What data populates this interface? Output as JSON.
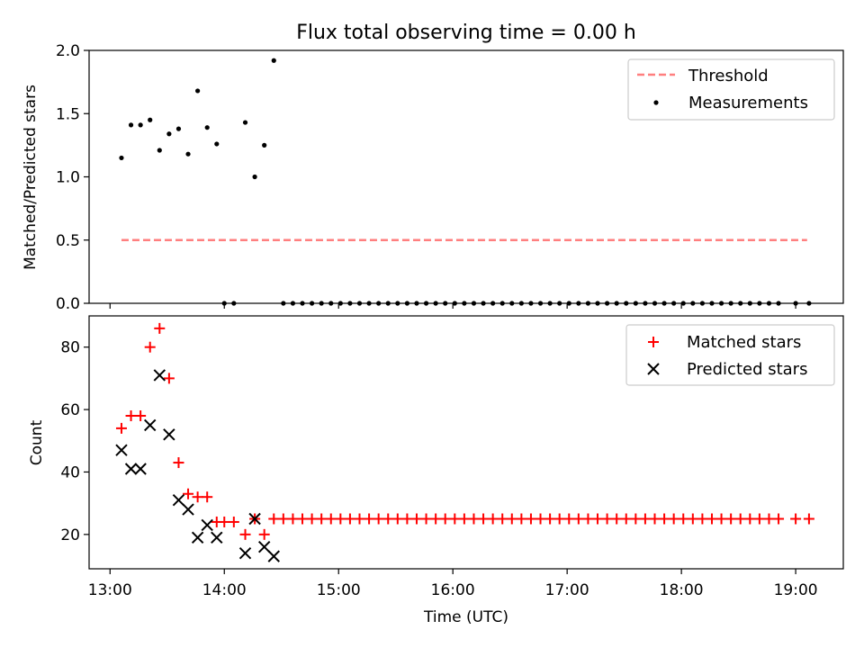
{
  "figure": {
    "title": "Flux total observing time = 0.00 h"
  },
  "chart_data": [
    {
      "type": "scatter",
      "panel": "top",
      "ylabel": "Matched/Predicted stars",
      "ylim": [
        0.0,
        2.0
      ],
      "yticks": [
        0.0,
        0.5,
        1.0,
        1.5,
        2.0
      ],
      "ytick_labels": [
        "0.0",
        "0.5",
        "1.0",
        "1.5",
        "2.0"
      ],
      "xlim": [
        "12:49",
        "19:25"
      ],
      "grid": false,
      "legend": "top-right",
      "series": [
        {
          "name": "Threshold",
          "kind": "line",
          "style": "dashed",
          "color": "#ff7f7f",
          "x": [
            "13:06",
            "19:06"
          ],
          "y": [
            0.5,
            0.5
          ]
        },
        {
          "name": "Measurements",
          "kind": "scatter",
          "marker": "dot",
          "color": "#000000",
          "points": [
            [
              "13:06",
              1.15
            ],
            [
              "13:11",
              1.41
            ],
            [
              "13:16",
              1.41
            ],
            [
              "13:21",
              1.45
            ],
            [
              "13:26",
              1.21
            ],
            [
              "13:31",
              1.34
            ],
            [
              "13:36",
              1.38
            ],
            [
              "13:41",
              1.18
            ],
            [
              "13:46",
              1.68
            ],
            [
              "13:51",
              1.39
            ],
            [
              "13:56",
              1.26
            ],
            [
              "14:00",
              0.0
            ],
            [
              "14:05",
              0.0
            ],
            [
              "14:11",
              1.43
            ],
            [
              "14:16",
              1.0
            ],
            [
              "14:21",
              1.25
            ],
            [
              "14:26",
              1.92
            ],
            [
              "14:31",
              0.0
            ],
            [
              "14:36",
              0.0
            ],
            [
              "14:41",
              0.0
            ],
            [
              "14:46",
              0.0
            ],
            [
              "14:51",
              0.0
            ],
            [
              "14:56",
              0.0
            ],
            [
              "15:01",
              0.0
            ],
            [
              "15:06",
              0.0
            ],
            [
              "15:11",
              0.0
            ],
            [
              "15:16",
              0.0
            ],
            [
              "15:21",
              0.0
            ],
            [
              "15:26",
              0.0
            ],
            [
              "15:31",
              0.0
            ],
            [
              "15:36",
              0.0
            ],
            [
              "15:41",
              0.0
            ],
            [
              "15:46",
              0.0
            ],
            [
              "15:51",
              0.0
            ],
            [
              "15:56",
              0.0
            ],
            [
              "16:01",
              0.0
            ],
            [
              "16:06",
              0.0
            ],
            [
              "16:11",
              0.0
            ],
            [
              "16:16",
              0.0
            ],
            [
              "16:21",
              0.0
            ],
            [
              "16:26",
              0.0
            ],
            [
              "16:31",
              0.0
            ],
            [
              "16:36",
              0.0
            ],
            [
              "16:41",
              0.0
            ],
            [
              "16:46",
              0.0
            ],
            [
              "16:51",
              0.0
            ],
            [
              "16:56",
              0.0
            ],
            [
              "17:01",
              0.0
            ],
            [
              "17:06",
              0.0
            ],
            [
              "17:11",
              0.0
            ],
            [
              "17:16",
              0.0
            ],
            [
              "17:21",
              0.0
            ],
            [
              "17:26",
              0.0
            ],
            [
              "17:31",
              0.0
            ],
            [
              "17:36",
              0.0
            ],
            [
              "17:41",
              0.0
            ],
            [
              "17:46",
              0.0
            ],
            [
              "17:51",
              0.0
            ],
            [
              "17:56",
              0.0
            ],
            [
              "18:01",
              0.0
            ],
            [
              "18:06",
              0.0
            ],
            [
              "18:11",
              0.0
            ],
            [
              "18:16",
              0.0
            ],
            [
              "18:21",
              0.0
            ],
            [
              "18:26",
              0.0
            ],
            [
              "18:31",
              0.0
            ],
            [
              "18:36",
              0.0
            ],
            [
              "18:41",
              0.0
            ],
            [
              "18:46",
              0.0
            ],
            [
              "18:51",
              0.0
            ],
            [
              "19:00",
              0.0
            ],
            [
              "19:07",
              0.0
            ]
          ]
        }
      ]
    },
    {
      "type": "scatter",
      "panel": "bottom",
      "xlabel": "Time (UTC)",
      "ylabel": "Count",
      "ylim": [
        9,
        90
      ],
      "yticks": [
        20,
        40,
        60,
        80
      ],
      "ytick_labels": [
        "20",
        "40",
        "60",
        "80"
      ],
      "xlim": [
        "12:49",
        "19:25"
      ],
      "xticks": [
        "13:00",
        "14:00",
        "15:00",
        "16:00",
        "17:00",
        "18:00",
        "19:00"
      ],
      "xtick_labels": [
        "13:00",
        "14:00",
        "15:00",
        "16:00",
        "17:00",
        "18:00",
        "19:00"
      ],
      "grid": false,
      "legend": "top-right",
      "series": [
        {
          "name": "Matched stars",
          "marker": "plus",
          "color": "#ff0000",
          "points": [
            [
              "13:06",
              54
            ],
            [
              "13:11",
              58
            ],
            [
              "13:16",
              58
            ],
            [
              "13:21",
              80
            ],
            [
              "13:26",
              86
            ],
            [
              "13:31",
              70
            ],
            [
              "13:36",
              43
            ],
            [
              "13:41",
              33
            ],
            [
              "13:46",
              32
            ],
            [
              "13:51",
              32
            ],
            [
              "13:56",
              24
            ],
            [
              "14:00",
              24
            ],
            [
              "14:05",
              24
            ],
            [
              "14:11",
              20
            ],
            [
              "14:16",
              25
            ],
            [
              "14:21",
              20
            ],
            [
              "14:26",
              25
            ],
            [
              "14:31",
              25
            ],
            [
              "14:36",
              25
            ],
            [
              "14:41",
              25
            ],
            [
              "14:46",
              25
            ],
            [
              "14:51",
              25
            ],
            [
              "14:56",
              25
            ],
            [
              "15:01",
              25
            ],
            [
              "15:06",
              25
            ],
            [
              "15:11",
              25
            ],
            [
              "15:16",
              25
            ],
            [
              "15:21",
              25
            ],
            [
              "15:26",
              25
            ],
            [
              "15:31",
              25
            ],
            [
              "15:36",
              25
            ],
            [
              "15:41",
              25
            ],
            [
              "15:46",
              25
            ],
            [
              "15:51",
              25
            ],
            [
              "15:56",
              25
            ],
            [
              "16:01",
              25
            ],
            [
              "16:06",
              25
            ],
            [
              "16:11",
              25
            ],
            [
              "16:16",
              25
            ],
            [
              "16:21",
              25
            ],
            [
              "16:26",
              25
            ],
            [
              "16:31",
              25
            ],
            [
              "16:36",
              25
            ],
            [
              "16:41",
              25
            ],
            [
              "16:46",
              25
            ],
            [
              "16:51",
              25
            ],
            [
              "16:56",
              25
            ],
            [
              "17:01",
              25
            ],
            [
              "17:06",
              25
            ],
            [
              "17:11",
              25
            ],
            [
              "17:16",
              25
            ],
            [
              "17:21",
              25
            ],
            [
              "17:26",
              25
            ],
            [
              "17:31",
              25
            ],
            [
              "17:36",
              25
            ],
            [
              "17:41",
              25
            ],
            [
              "17:46",
              25
            ],
            [
              "17:51",
              25
            ],
            [
              "17:56",
              25
            ],
            [
              "18:01",
              25
            ],
            [
              "18:06",
              25
            ],
            [
              "18:11",
              25
            ],
            [
              "18:16",
              25
            ],
            [
              "18:21",
              25
            ],
            [
              "18:26",
              25
            ],
            [
              "18:31",
              25
            ],
            [
              "18:36",
              25
            ],
            [
              "18:41",
              25
            ],
            [
              "18:46",
              25
            ],
            [
              "18:51",
              25
            ],
            [
              "19:00",
              25
            ],
            [
              "19:07",
              25
            ]
          ]
        },
        {
          "name": "Predicted stars",
          "marker": "x",
          "color": "#000000",
          "points": [
            [
              "13:06",
              47
            ],
            [
              "13:11",
              41
            ],
            [
              "13:16",
              41
            ],
            [
              "13:21",
              55
            ],
            [
              "13:26",
              71
            ],
            [
              "13:31",
              52
            ],
            [
              "13:36",
              31
            ],
            [
              "13:41",
              28
            ],
            [
              "13:46",
              19
            ],
            [
              "13:51",
              23
            ],
            [
              "13:56",
              19
            ],
            [
              "14:11",
              14
            ],
            [
              "14:16",
              25
            ],
            [
              "14:21",
              16
            ],
            [
              "14:26",
              13
            ]
          ]
        }
      ]
    }
  ]
}
